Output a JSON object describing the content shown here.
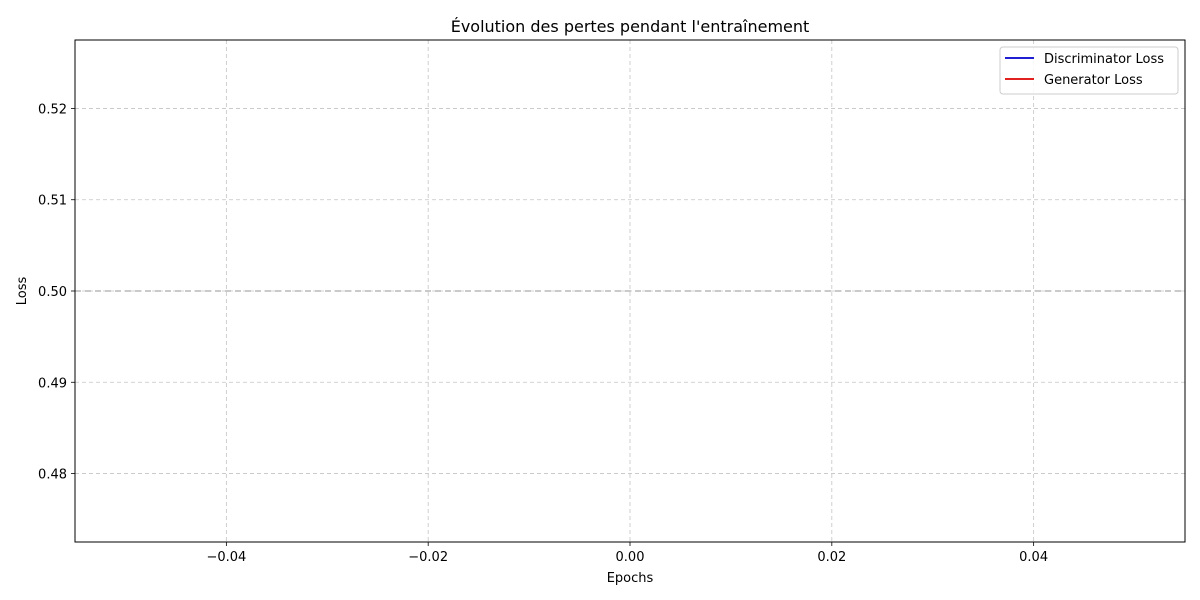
{
  "chart_data": {
    "type": "line",
    "title": "Évolution des pertes pendant l'entraînement",
    "xlabel": "Epochs",
    "ylabel": "Loss",
    "xlim": [
      -0.055,
      0.055
    ],
    "ylim": [
      0.4725,
      0.5275
    ],
    "xticks": [
      -0.04,
      -0.02,
      0.0,
      0.02,
      0.04
    ],
    "xtick_labels": [
      "−0.04",
      "−0.02",
      "0.00",
      "0.02",
      "0.04"
    ],
    "yticks": [
      0.48,
      0.49,
      0.5,
      0.51,
      0.52
    ],
    "ytick_labels": [
      "0.48",
      "0.49",
      "0.50",
      "0.51",
      "0.52"
    ],
    "grid": true,
    "legend_position": "top-right",
    "series": [
      {
        "name": "Discriminator Loss",
        "color": "#0000cc",
        "x": [
          0
        ],
        "y": [
          0.5
        ]
      },
      {
        "name": "Generator Loss",
        "color": "#dd0000",
        "x": [
          0
        ],
        "y": [
          0.5
        ]
      }
    ],
    "reference_line": {
      "y": 0.5,
      "color": "#aaaaaa",
      "style": "dashed"
    }
  }
}
